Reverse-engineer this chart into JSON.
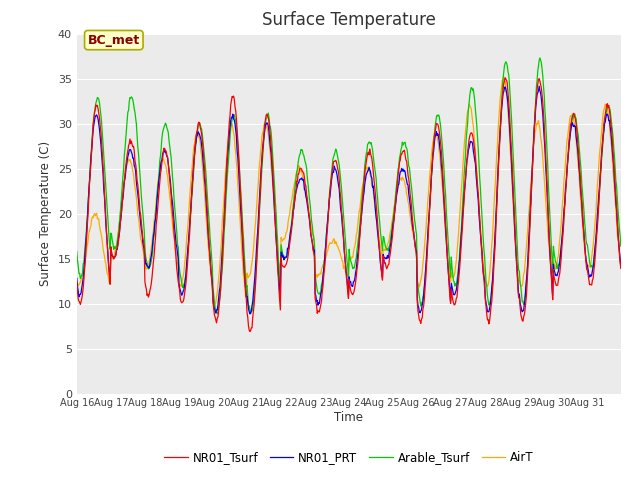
{
  "title": "Surface Temperature",
  "ylabel": "Surface Temperature (C)",
  "xlabel": "Time",
  "ylim": [
    0,
    40
  ],
  "yticks": [
    0,
    5,
    10,
    15,
    20,
    25,
    30,
    35,
    40
  ],
  "x_labels": [
    "Aug 16",
    "Aug 17",
    "Aug 18",
    "Aug 19",
    "Aug 20",
    "Aug 21",
    "Aug 22",
    "Aug 23",
    "Aug 24",
    "Aug 25",
    "Aug 26",
    "Aug 27",
    "Aug 28",
    "Aug 29",
    "Aug 30",
    "Aug 31"
  ],
  "annotation": "BC_met",
  "bg_color": "#ebebeb",
  "series": [
    {
      "name": "NR01_Tsurf",
      "color": "#ff0000"
    },
    {
      "name": "NR01_PRT",
      "color": "#0000ff"
    },
    {
      "name": "Arable_Tsurf",
      "color": "#00cc00"
    },
    {
      "name": "AirT",
      "color": "#ffaa00"
    }
  ],
  "n_days": 16,
  "pts_per_day": 48,
  "day_peaks_nr01": [
    32,
    28,
    27,
    30,
    33,
    31,
    25,
    26,
    27,
    27,
    30,
    29,
    35,
    35,
    31,
    32
  ],
  "day_mins_nr01": [
    10,
    15,
    11,
    10,
    8,
    7,
    14,
    9,
    11,
    14,
    8,
    10,
    8,
    8,
    12,
    12
  ],
  "day_peaks_prt": [
    31,
    27,
    27,
    29,
    31,
    30,
    24,
    25,
    25,
    25,
    29,
    28,
    34,
    34,
    30,
    31
  ],
  "day_mins_prt": [
    11,
    15,
    14,
    11,
    9,
    9,
    15,
    10,
    12,
    15,
    9,
    11,
    9,
    9,
    13,
    13
  ],
  "day_peaks_arable": [
    33,
    33,
    30,
    30,
    31,
    31,
    27,
    27,
    28,
    28,
    31,
    34,
    37,
    37,
    31,
    32
  ],
  "day_mins_arable": [
    13,
    16,
    14,
    12,
    9,
    9,
    15,
    11,
    14,
    16,
    10,
    12,
    10,
    10,
    14,
    14
  ],
  "day_peaks_air": [
    20,
    26,
    26,
    29,
    30,
    30,
    25,
    17,
    25,
    24,
    29,
    32,
    35,
    30,
    31,
    32
  ],
  "day_mins_air": [
    12,
    15,
    14,
    12,
    10,
    13,
    17,
    13,
    15,
    16,
    12,
    13,
    12,
    12,
    14,
    14
  ]
}
